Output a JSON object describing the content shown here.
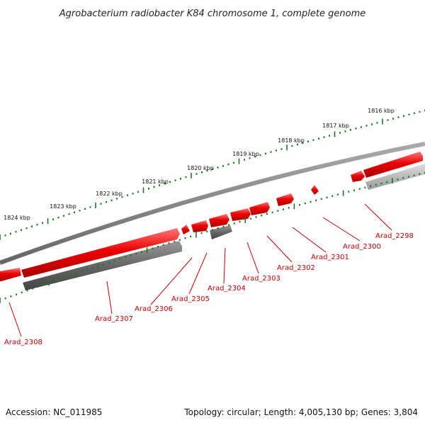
{
  "title": "Agrobacterium radiobacter K84 chromosome 1, complete genome",
  "footer": {
    "accession": "Accession: NC_011985",
    "summary": "Topology: circular; Length: 4,005,130 bp; Genes: 3,804"
  },
  "colors": {
    "forward_gene": "#ee0000",
    "reverse_gene": "#666666",
    "reverse_gene_light": "#bbbbbb",
    "backbone": "#888888",
    "tick": "#1a7a1a",
    "label": "#cc0000"
  },
  "scale": {
    "unit": "kbp",
    "labels": [
      "1816 kbp",
      "1817 kbp",
      "1818 kbp",
      "1819 kbp",
      "1820 kbp",
      "1821 kbp",
      "1822 kbp",
      "1823 kbp",
      "1824 kbp"
    ]
  },
  "genes": [
    {
      "name": "Arad_2298",
      "strand": "+"
    },
    {
      "name": "Arad_2300",
      "strand": "+"
    },
    {
      "name": "Arad_2301",
      "strand": "+"
    },
    {
      "name": "Arad_2302",
      "strand": "+"
    },
    {
      "name": "Arad_2303",
      "strand": "+"
    },
    {
      "name": "Arad_2304",
      "strand": "-"
    },
    {
      "name": "Arad_2305",
      "strand": "+"
    },
    {
      "name": "Arad_2306",
      "strand": "+"
    },
    {
      "name": "Arad_2307",
      "strand": "-"
    },
    {
      "name": "Arad_2308",
      "strand": "+"
    }
  ]
}
